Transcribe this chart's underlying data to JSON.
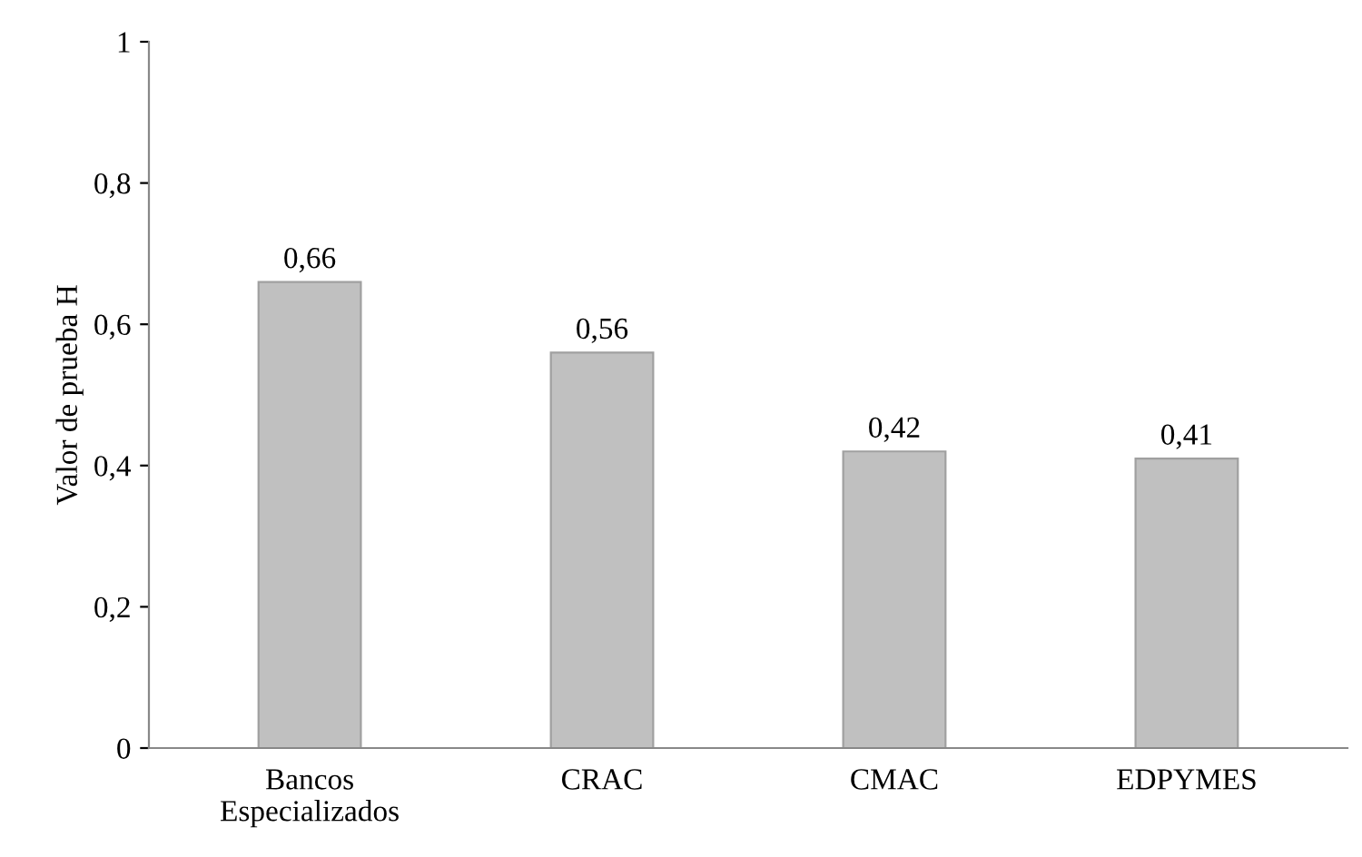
{
  "chart_data": {
    "type": "bar",
    "ylabel": "Valor de prueba H",
    "categories": [
      "Bancos\nEspecializados",
      "CRAC",
      "CMAC",
      "EDPYMES"
    ],
    "values": [
      0.66,
      0.56,
      0.42,
      0.41
    ],
    "value_labels": [
      "0,66",
      "0,56",
      "0,42",
      "0,41"
    ],
    "color": "#c0c0c0",
    "ylim": [
      0,
      1
    ],
    "yticks": [
      0,
      {
        "value": 0.2,
        "label": "0,2"
      },
      {
        "value": 0.4,
        "label": "0,4"
      },
      {
        "value": 0.6,
        "label": "0,6"
      },
      {
        "value": 0.8,
        "label": "0,8"
      },
      1
    ],
    "grid": false
  }
}
